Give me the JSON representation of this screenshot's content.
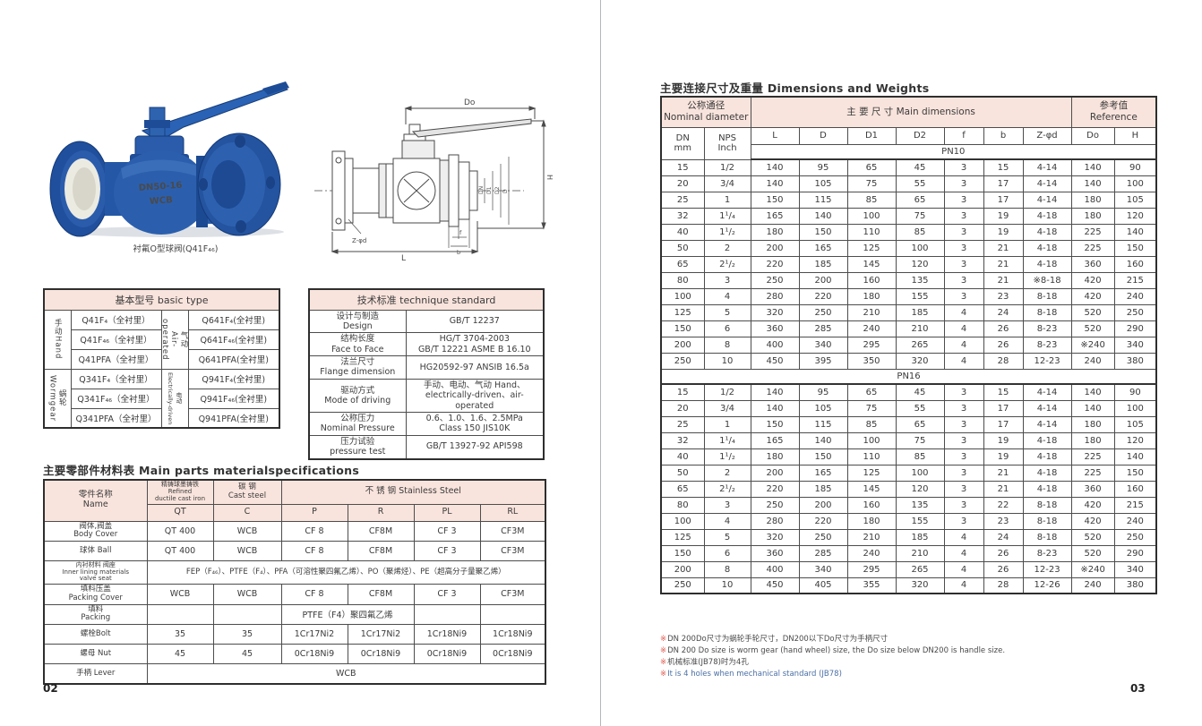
{
  "colors": {
    "pink_header": "#f9e4dd",
    "border_dark": "#3c3c3c",
    "text": "#3b3b3b",
    "footnote_red": "#e05a4e",
    "footnote_blue": "#4a6fa5",
    "valve_blue": "#2458a6",
    "divider": "#b3b7bb"
  },
  "left_page": {
    "page_number": "02",
    "valve_photo": {
      "cast_line1": "DN50-16",
      "cast_line2": "WCB",
      "caption": "衬氟O型球阀(Q41F₄₆)"
    },
    "drawing_labels": {
      "do": "Do",
      "h": "H",
      "l": "L",
      "zphid": "Z-φd",
      "f": "f",
      "b": "b",
      "dn": "DN",
      "d1": "D1",
      "d2": "D2",
      "d": "D"
    },
    "basic_type": {
      "title": "基本型号 basic type",
      "groups": [
        {
          "drive_left": "手动Hand",
          "models_left": [
            "Q41F₄（全衬里）",
            "Q41F₄₆（全衬里）",
            "Q41PFA（全衬里）"
          ],
          "drive_right": "气动\nAir-operated",
          "models_right": [
            "Q641F₄(全衬里)",
            "Q641F₄₆(全衬里)",
            "Q641PFA(全衬里)"
          ]
        },
        {
          "drive_left": "蜗轮\nWormgear",
          "models_left": [
            "Q341F₄（全衬里）",
            "Q341F₄₆（全衬里）",
            "Q341PFA（全衬里）"
          ],
          "drive_right": "电动\nElectrically-driven",
          "models_right": [
            "Q941F₄(全衬里)",
            "Q941F₄₆(全衬里)",
            "Q941PFA(全衬里)"
          ]
        }
      ]
    },
    "tech_std": {
      "title": "技术标准 technique standard",
      "rows": [
        {
          "label": "设计与制造\nDesign",
          "value": "GB/T 12237"
        },
        {
          "label": "结构长度\nFace to Face",
          "value": "HG/T 3704-2003\nGB/T 12221   ASME B 16.10"
        },
        {
          "label": "法兰尺寸\nFlange dimension",
          "value": "HG20592-97 ANSIB 16.5a"
        },
        {
          "label": "驱动方式\nMode of driving",
          "value": "手动、电动、气动 Hand、\nelectrically-driven、air-operated"
        },
        {
          "label": "公称压力\nNominal Pressure",
          "value": "0.6、1.0、1.6、2.5MPa\nClass 150  JIS10K"
        },
        {
          "label": "压力试验\npressure test",
          "value": "GB/T 13927-92   API598"
        }
      ]
    },
    "materials": {
      "title": "主要零部件材料表 Main parts materialspecifications",
      "header": {
        "name": "零件名称\nName",
        "qt_group": "精铸球墨铸铁\nRefined\nductile cast iron",
        "c_group": "碳  钢\nCast steel",
        "ss_group": "不  锈  钢 Stainless Steel",
        "cols": [
          "QT",
          "C",
          "P",
          "R",
          "PL",
          "RL"
        ]
      },
      "rows": [
        {
          "name": "阀体,阀盖\nBody Cover",
          "cells": [
            "QT 400",
            "WCB",
            "CF 8",
            "CF8M",
            "CF 3",
            "CF3M"
          ]
        },
        {
          "name": "球体 Ball",
          "cells": [
            "QT 400",
            "WCB",
            "CF 8",
            "CF8M",
            "CF 3",
            "CF3M"
          ]
        },
        {
          "name": "内衬材料 阀座\nInner lining materials\nvalve seat",
          "span": "FEP（F₄₆）、PTFE（F₄）、PFA（可溶性聚四氟乙烯）、PO（聚烯烃）、PE（超高分子量聚乙烯）"
        },
        {
          "name": "填料压盖\nPacking Cover",
          "cells": [
            "WCB",
            "WCB",
            "CF 8",
            "CF8M",
            "CF 3",
            "CF3M"
          ]
        },
        {
          "name": "填料\nPacking",
          "pr_span": "PTFE（F4）聚四氟乙烯"
        },
        {
          "name": "螺栓Bolt",
          "cells": [
            "35",
            "35",
            "1Cr17Ni2",
            "1Cr17Ni2",
            "1Cr18Ni9",
            "1Cr18Ni9"
          ]
        },
        {
          "name": "螺母 Nut",
          "cells": [
            "45",
            "45",
            "0Cr18Ni9",
            "0Cr18Ni9",
            "0Cr18Ni9",
            "0Cr18Ni9"
          ]
        },
        {
          "name": "手柄 Lever",
          "span": "WCB"
        }
      ]
    }
  },
  "right_page": {
    "page_number": "03",
    "title": "主要连接尺寸及重量 Dimensions and Weights",
    "dims": {
      "header": {
        "nominal": "公称通径\nNominal diameter",
        "main": "主 要 尺 寸  Main  dimensions",
        "reference": "参考值\nReference",
        "dn": "DN\nmm",
        "nps": "NPS\nInch",
        "cols": [
          "L",
          "D",
          "D1",
          "D2",
          "f",
          "b",
          "Z-φd",
          "Do",
          "H"
        ]
      },
      "pn10_label": "PN10",
      "pn16_label": "PN16",
      "pn10_rows": [
        [
          "15",
          "1/2",
          "140",
          "95",
          "65",
          "45",
          "3",
          "15",
          "4-14",
          "140",
          "90"
        ],
        [
          "20",
          "3/4",
          "140",
          "105",
          "75",
          "55",
          "3",
          "17",
          "4-14",
          "140",
          "100"
        ],
        [
          "25",
          "1",
          "150",
          "115",
          "85",
          "65",
          "3",
          "17",
          "4-14",
          "180",
          "105"
        ],
        [
          "32",
          "1¹/₄",
          "165",
          "140",
          "100",
          "75",
          "3",
          "19",
          "4-18",
          "180",
          "120"
        ],
        [
          "40",
          "1¹/₂",
          "180",
          "150",
          "110",
          "85",
          "3",
          "19",
          "4-18",
          "225",
          "140"
        ],
        [
          "50",
          "2",
          "200",
          "165",
          "125",
          "100",
          "3",
          "21",
          "4-18",
          "225",
          "150"
        ],
        [
          "65",
          "2¹/₂",
          "220",
          "185",
          "145",
          "120",
          "3",
          "21",
          "4-18",
          "360",
          "160"
        ],
        [
          "80",
          "3",
          "250",
          "200",
          "160",
          "135",
          "3",
          "21",
          "※8-18",
          "420",
          "215"
        ],
        [
          "100",
          "4",
          "280",
          "220",
          "180",
          "155",
          "3",
          "23",
          "8-18",
          "420",
          "240"
        ],
        [
          "125",
          "5",
          "320",
          "250",
          "210",
          "185",
          "4",
          "24",
          "8-18",
          "520",
          "250"
        ],
        [
          "150",
          "6",
          "360",
          "285",
          "240",
          "210",
          "4",
          "26",
          "8-23",
          "520",
          "290"
        ],
        [
          "200",
          "8",
          "400",
          "340",
          "295",
          "265",
          "4",
          "26",
          "8-23",
          "※240",
          "340"
        ],
        [
          "250",
          "10",
          "450",
          "395",
          "350",
          "320",
          "4",
          "28",
          "12-23",
          "240",
          "380"
        ]
      ],
      "pn16_rows": [
        [
          "15",
          "1/2",
          "140",
          "95",
          "65",
          "45",
          "3",
          "15",
          "4-14",
          "140",
          "90"
        ],
        [
          "20",
          "3/4",
          "140",
          "105",
          "75",
          "55",
          "3",
          "17",
          "4-14",
          "140",
          "100"
        ],
        [
          "25",
          "1",
          "150",
          "115",
          "85",
          "65",
          "3",
          "17",
          "4-14",
          "180",
          "105"
        ],
        [
          "32",
          "1¹/₄",
          "165",
          "140",
          "100",
          "75",
          "3",
          "19",
          "4-18",
          "180",
          "120"
        ],
        [
          "40",
          "1¹/₂",
          "180",
          "150",
          "110",
          "85",
          "3",
          "19",
          "4-18",
          "225",
          "140"
        ],
        [
          "50",
          "2",
          "200",
          "165",
          "125",
          "100",
          "3",
          "21",
          "4-18",
          "225",
          "150"
        ],
        [
          "65",
          "2¹/₂",
          "220",
          "185",
          "145",
          "120",
          "3",
          "21",
          "4-18",
          "360",
          "160"
        ],
        [
          "80",
          "3",
          "250",
          "200",
          "160",
          "135",
          "3",
          "22",
          "8-18",
          "420",
          "215"
        ],
        [
          "100",
          "4",
          "280",
          "220",
          "180",
          "155",
          "3",
          "23",
          "8-18",
          "420",
          "240"
        ],
        [
          "125",
          "5",
          "320",
          "250",
          "210",
          "185",
          "4",
          "24",
          "8-18",
          "520",
          "250"
        ],
        [
          "150",
          "6",
          "360",
          "285",
          "240",
          "210",
          "4",
          "26",
          "8-23",
          "520",
          "290"
        ],
        [
          "200",
          "8",
          "400",
          "340",
          "295",
          "265",
          "4",
          "26",
          "12-23",
          "※240",
          "340"
        ],
        [
          "250",
          "10",
          "450",
          "405",
          "355",
          "320",
          "4",
          "28",
          "12-26",
          "240",
          "380"
        ]
      ]
    },
    "footnotes": {
      "mark": "※",
      "lines": [
        "DN 200Do尺寸为蜗轮手轮尺寸，DN200以下Do尺寸为手柄尺寸",
        "DN 200 Do size is worm gear (hand wheel) size, the Do size below DN200 is handle size.",
        "机械标准(JB78)时为4孔",
        "It is 4 holes when mechanical standard (JB78)"
      ]
    }
  }
}
